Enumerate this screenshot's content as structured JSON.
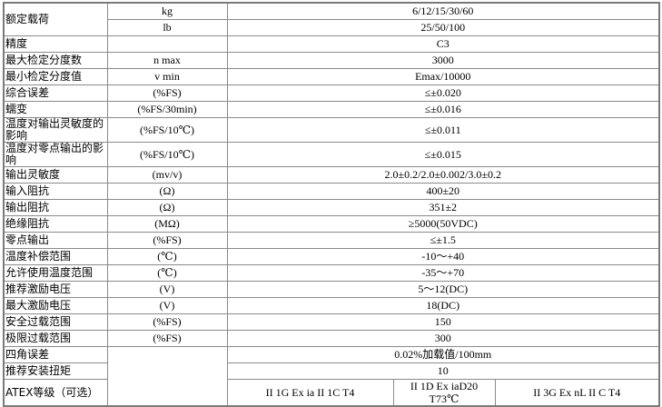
{
  "rows": [
    {
      "name": "额定载荷",
      "unit": "kg",
      "value": "6/12/15/30/60"
    },
    {
      "unit": "lb",
      "value": "25/50/100"
    },
    {
      "name": "精度",
      "unit": "",
      "value": "C3"
    },
    {
      "name": "最大检定分度数",
      "unit": "n max",
      "value": "3000"
    },
    {
      "name": "最小检定分度值",
      "unit": "v min",
      "value": "Emax/10000"
    },
    {
      "name": "综合误差",
      "unit": "(%FS)",
      "value": "≤±0.020"
    },
    {
      "name": "蠕变",
      "unit": "(%FS/30min)",
      "value": "≤±0.016"
    },
    {
      "name": "温度对输出灵敏度的影响",
      "unit": "(%FS/10℃)",
      "value": "≤±0.011"
    },
    {
      "name": "温度对零点输出的影响",
      "unit": "(%FS/10℃)",
      "value": "≤±0.015"
    },
    {
      "name": "输出灵敏度",
      "unit": "(mv/v)",
      "value": "2.0±0.2/2.0±0.002/3.0±0.2"
    },
    {
      "name": "输入阻抗",
      "unit": "(Ω)",
      "value": "400±20"
    },
    {
      "name": "输出阻抗",
      "unit": "(Ω)",
      "value": "351±2"
    },
    {
      "name": "绝缘阻抗",
      "unit": "(MΩ)",
      "value": "≥5000(50VDC)"
    },
    {
      "name": "零点输出",
      "unit": "(%FS)",
      "value": "≤±1.5"
    },
    {
      "name": "温度补偿范围",
      "unit": "(℃)",
      "value": "-10～+40"
    },
    {
      "name": "允许使用温度范围",
      "unit": "(℃)",
      "value": "-35～+70"
    },
    {
      "name": "推荐激励电压",
      "unit": "(V)",
      "value": "5～12(DC)"
    },
    {
      "name": "最大激励电压",
      "unit": "(V)",
      "value": "18(DC)"
    },
    {
      "name": "安全过载范围",
      "unit": "(%FS)",
      "value": "150"
    },
    {
      "name": "极限过载范围",
      "unit": "(%FS)",
      "value": "300"
    },
    {
      "name": "四角误差",
      "value": "0.02%加载值/100mm"
    },
    {
      "name": "推荐安装扭矩",
      "value": "10"
    }
  ],
  "atex": {
    "name": "ATEX等级（可选）",
    "values": [
      "II 1G Ex ia II 1C T4",
      "II 1D Ex iaD20 T73℃",
      "II 3G Ex nL II C T4"
    ]
  }
}
